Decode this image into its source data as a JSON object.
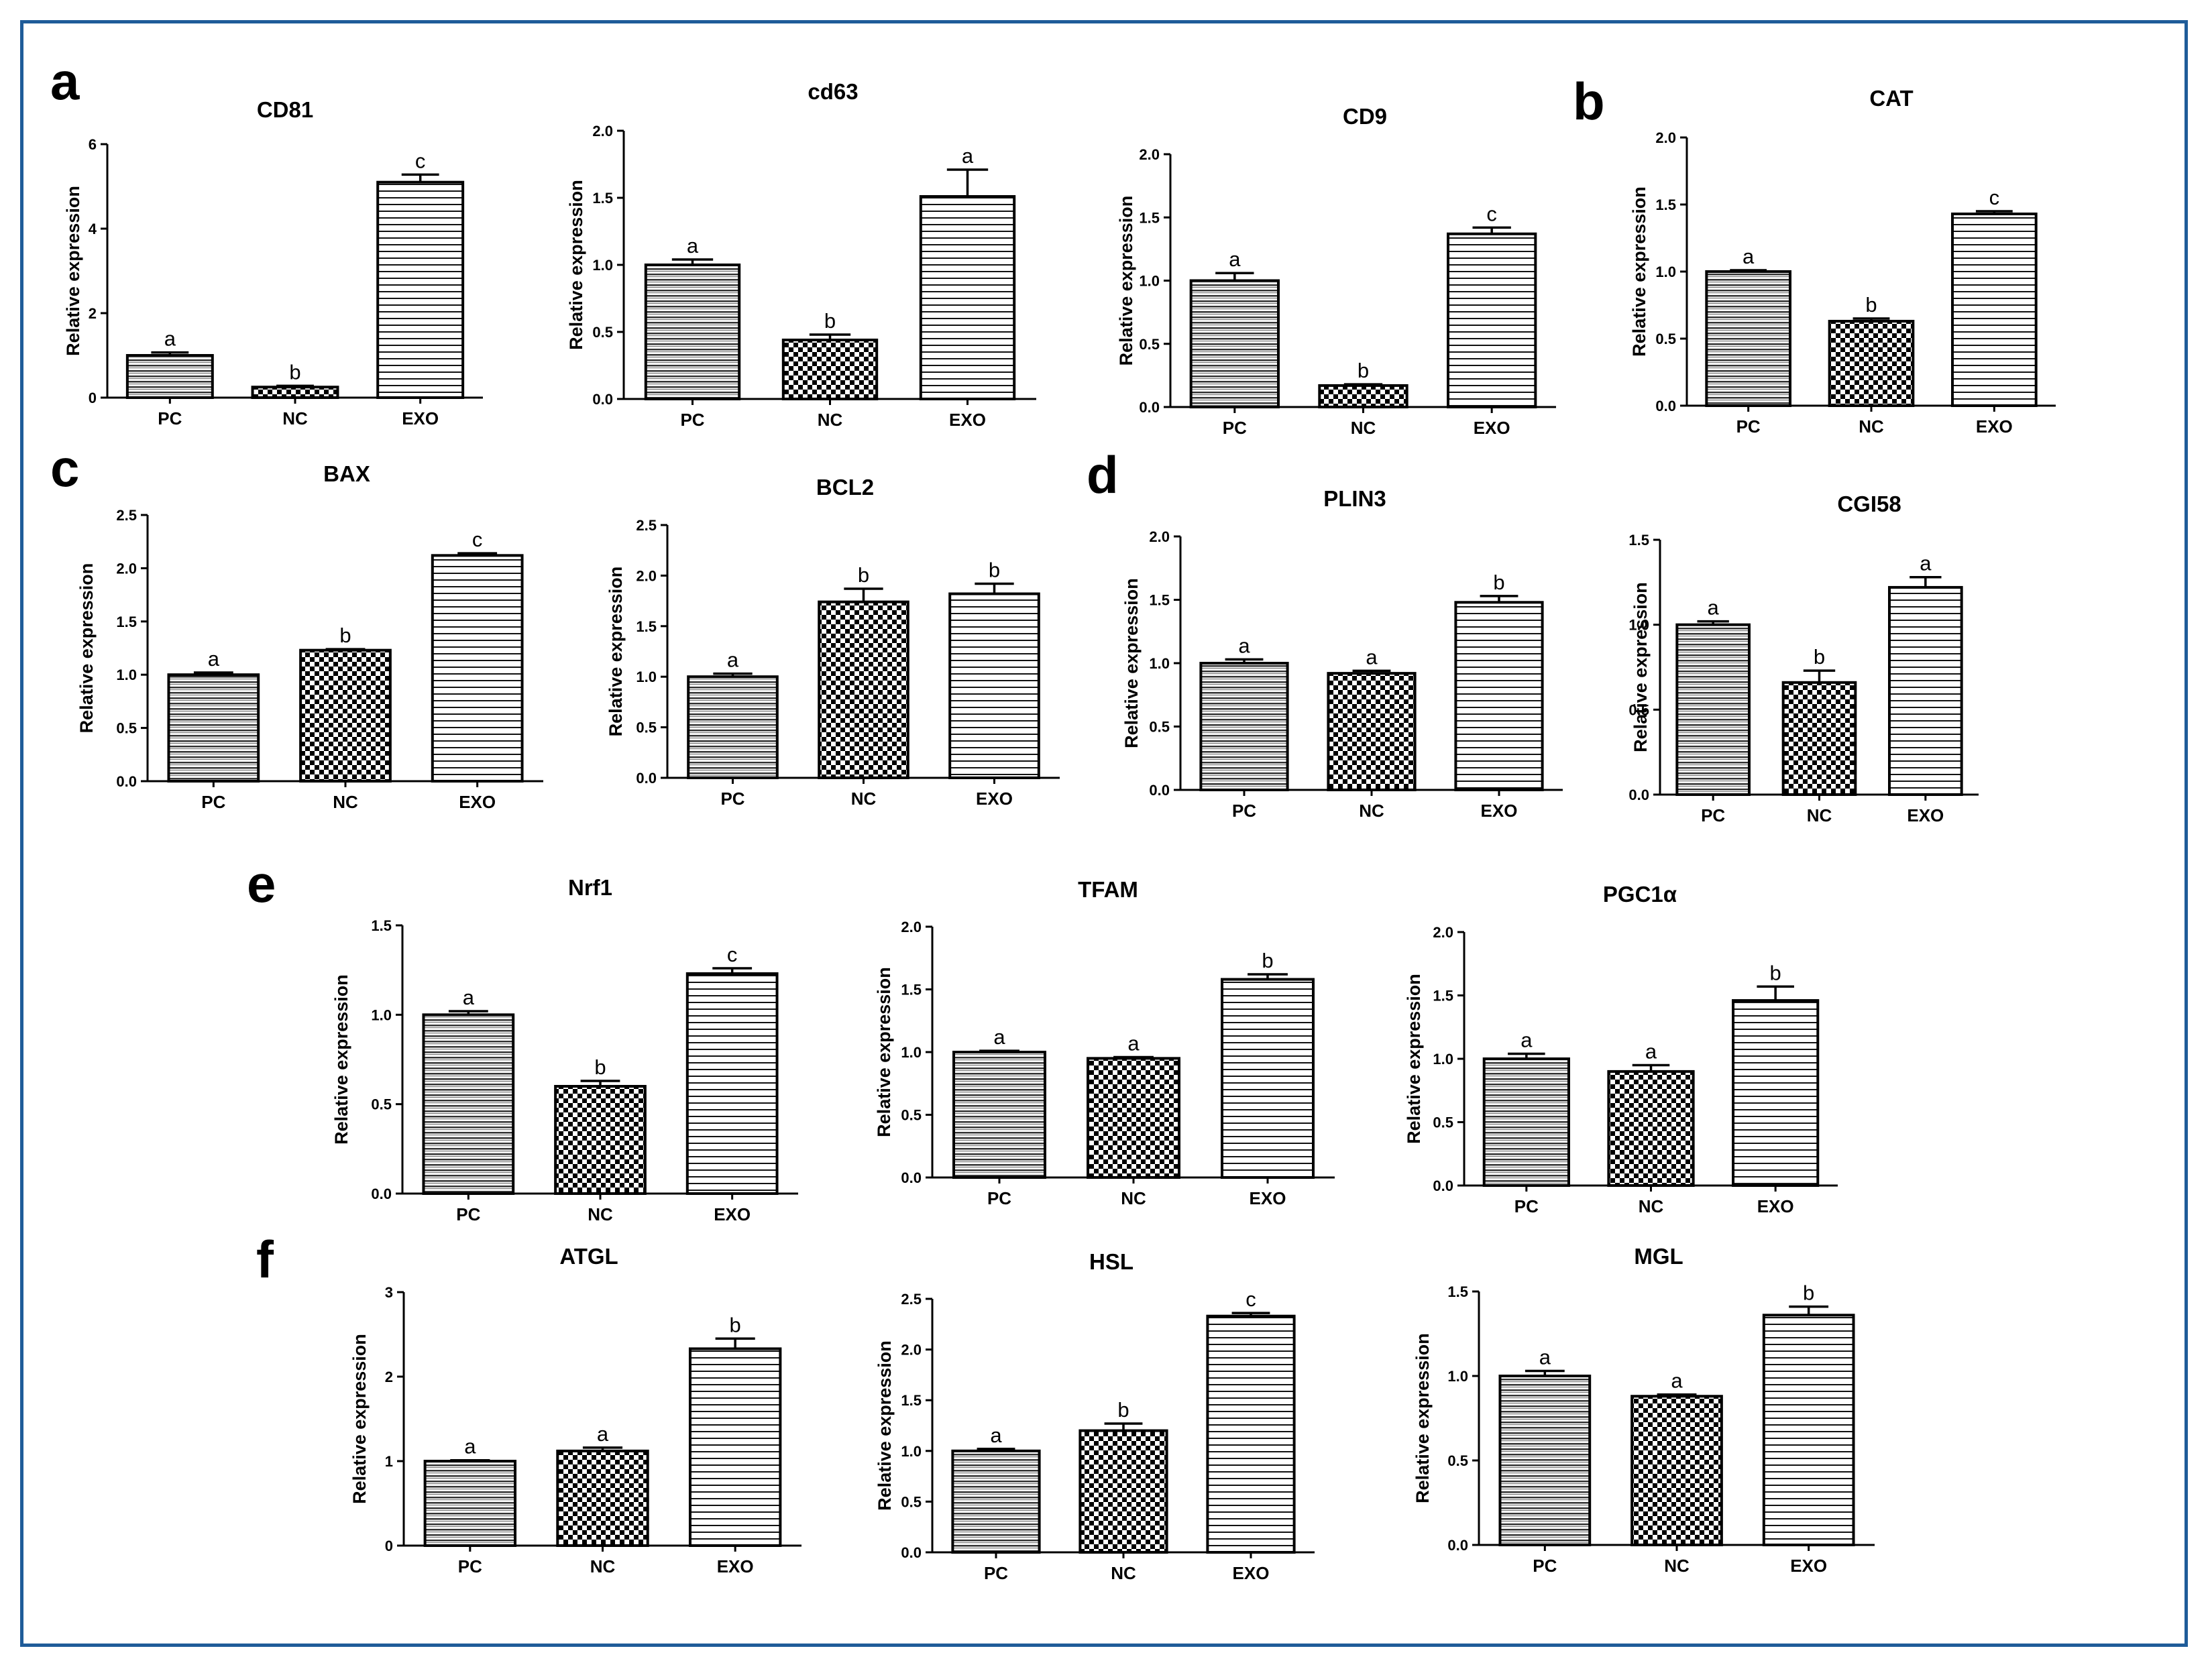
{
  "panel_letters": [
    "a",
    "b",
    "c",
    "d",
    "e",
    "f"
  ],
  "chart_data": [
    {
      "type": "bar",
      "panel": "a",
      "title": "CD81",
      "ylabel": "Relative expression",
      "categories": [
        "PC",
        "NC",
        "EXO"
      ],
      "values": [
        1.0,
        0.25,
        5.1
      ],
      "errors": [
        0.07,
        0.03,
        0.18
      ],
      "significance": [
        "a",
        "b",
        "c"
      ],
      "ylim": [
        0,
        6
      ],
      "yticks": [
        0,
        2,
        4,
        6
      ]
    },
    {
      "type": "bar",
      "panel": "a",
      "title": "cd63",
      "ylabel": "Relative expression",
      "categories": [
        "PC",
        "NC",
        "EXO"
      ],
      "values": [
        1.0,
        0.44,
        1.51
      ],
      "errors": [
        0.04,
        0.04,
        0.2
      ],
      "significance": [
        "a",
        "b",
        "a"
      ],
      "ylim": [
        0,
        2
      ],
      "yticks": [
        0.0,
        0.5,
        1.0,
        1.5,
        2.0
      ]
    },
    {
      "type": "bar",
      "panel": "a",
      "title": "CD9",
      "ylabel": "Relative expression",
      "categories": [
        "PC",
        "NC",
        "EXO"
      ],
      "values": [
        1.0,
        0.17,
        1.37
      ],
      "errors": [
        0.06,
        0.01,
        0.05
      ],
      "significance": [
        "a",
        "b",
        "c"
      ],
      "ylim": [
        0,
        2
      ],
      "yticks": [
        0.0,
        0.5,
        1.0,
        1.5,
        2.0
      ]
    },
    {
      "type": "bar",
      "panel": "b",
      "title": "CAT",
      "ylabel": "Relative expression",
      "categories": [
        "PC",
        "NC",
        "EXO"
      ],
      "values": [
        1.0,
        0.63,
        1.43
      ],
      "errors": [
        0.01,
        0.02,
        0.02
      ],
      "significance": [
        "a",
        "b",
        "c"
      ],
      "ylim": [
        0,
        2
      ],
      "yticks": [
        0.0,
        0.5,
        1.0,
        1.5,
        2.0
      ]
    },
    {
      "type": "bar",
      "panel": "c",
      "title": "BAX",
      "ylabel": "Relative expression",
      "categories": [
        "PC",
        "NC",
        "EXO"
      ],
      "values": [
        1.0,
        1.23,
        2.12
      ],
      "errors": [
        0.02,
        0.01,
        0.02
      ],
      "significance": [
        "a",
        "b",
        "c"
      ],
      "ylim": [
        0,
        2.5
      ],
      "yticks": [
        0.0,
        0.5,
        1.0,
        1.5,
        2.0,
        2.5
      ]
    },
    {
      "type": "bar",
      "panel": "c",
      "title": "BCL2",
      "ylabel": "Relative expression",
      "categories": [
        "PC",
        "NC",
        "EXO"
      ],
      "values": [
        1.0,
        1.74,
        1.82
      ],
      "errors": [
        0.03,
        0.13,
        0.1
      ],
      "significance": [
        "a",
        "b",
        "b"
      ],
      "ylim": [
        0,
        2.5
      ],
      "yticks": [
        0.0,
        0.5,
        1.0,
        1.5,
        2.0,
        2.5
      ]
    },
    {
      "type": "bar",
      "panel": "d",
      "title": "PLIN3",
      "ylabel": "Relative expression",
      "categories": [
        "PC",
        "NC",
        "EXO"
      ],
      "values": [
        1.0,
        0.92,
        1.48
      ],
      "errors": [
        0.03,
        0.02,
        0.05
      ],
      "significance": [
        "a",
        "a",
        "b"
      ],
      "ylim": [
        0,
        2
      ],
      "yticks": [
        0.0,
        0.5,
        1.0,
        1.5,
        2.0
      ]
    },
    {
      "type": "bar",
      "panel": "d",
      "title": "CGI58",
      "ylabel": "Relative expression",
      "categories": [
        "PC",
        "NC",
        "EXO"
      ],
      "values": [
        1.0,
        0.66,
        1.22
      ],
      "errors": [
        0.02,
        0.07,
        0.06
      ],
      "significance": [
        "a",
        "b",
        "a"
      ],
      "ylim": [
        0,
        1.5
      ],
      "yticks": [
        0.0,
        0.5,
        1.0,
        1.5
      ]
    },
    {
      "type": "bar",
      "panel": "e",
      "title": "Nrf1",
      "ylabel": "Relative expression",
      "categories": [
        "PC",
        "NC",
        "EXO"
      ],
      "values": [
        1.0,
        0.6,
        1.23
      ],
      "errors": [
        0.02,
        0.03,
        0.03
      ],
      "significance": [
        "a",
        "b",
        "c"
      ],
      "ylim": [
        0,
        1.5
      ],
      "yticks": [
        0.0,
        0.5,
        1.0,
        1.5
      ]
    },
    {
      "type": "bar",
      "panel": "e",
      "title": "TFAM",
      "ylabel": "Relative expression",
      "categories": [
        "PC",
        "NC",
        "EXO"
      ],
      "values": [
        1.0,
        0.95,
        1.58
      ],
      "errors": [
        0.01,
        0.01,
        0.04
      ],
      "significance": [
        "a",
        "a",
        "b"
      ],
      "ylim": [
        0,
        2
      ],
      "yticks": [
        0.0,
        0.5,
        1.0,
        1.5,
        2.0
      ]
    },
    {
      "type": "bar",
      "panel": "e",
      "title": "PGC1α",
      "ylabel": "Relative expression",
      "categories": [
        "PC",
        "NC",
        "EXO"
      ],
      "values": [
        1.0,
        0.9,
        1.46
      ],
      "errors": [
        0.04,
        0.05,
        0.11
      ],
      "significance": [
        "a",
        "a",
        "b"
      ],
      "ylim": [
        0,
        2
      ],
      "yticks": [
        0.0,
        0.5,
        1.0,
        1.5,
        2.0
      ]
    },
    {
      "type": "bar",
      "panel": "f",
      "title": "ATGL",
      "ylabel": "Relative expression",
      "categories": [
        "PC",
        "NC",
        "EXO"
      ],
      "values": [
        1.0,
        1.12,
        2.33
      ],
      "errors": [
        0.01,
        0.04,
        0.12
      ],
      "significance": [
        "a",
        "a",
        "b"
      ],
      "ylim": [
        0,
        3
      ],
      "yticks": [
        0,
        1,
        2,
        3
      ]
    },
    {
      "type": "bar",
      "panel": "f",
      "title": "HSL",
      "ylabel": "Relative expression",
      "categories": [
        "PC",
        "NC",
        "EXO"
      ],
      "values": [
        1.0,
        1.2,
        2.33
      ],
      "errors": [
        0.02,
        0.07,
        0.03
      ],
      "significance": [
        "a",
        "b",
        "c"
      ],
      "ylim": [
        0,
        2.5
      ],
      "yticks": [
        0.0,
        0.5,
        1.0,
        1.5,
        2.0,
        2.5
      ]
    },
    {
      "type": "bar",
      "panel": "f",
      "title": "MGL",
      "ylabel": "Relative expression",
      "categories": [
        "PC",
        "NC",
        "EXO"
      ],
      "values": [
        1.0,
        0.88,
        1.36
      ],
      "errors": [
        0.03,
        0.01,
        0.05
      ],
      "significance": [
        "a",
        "a",
        "b"
      ],
      "ylim": [
        0,
        1.5
      ],
      "yticks": [
        0.0,
        0.5,
        1.0,
        1.5
      ]
    }
  ]
}
